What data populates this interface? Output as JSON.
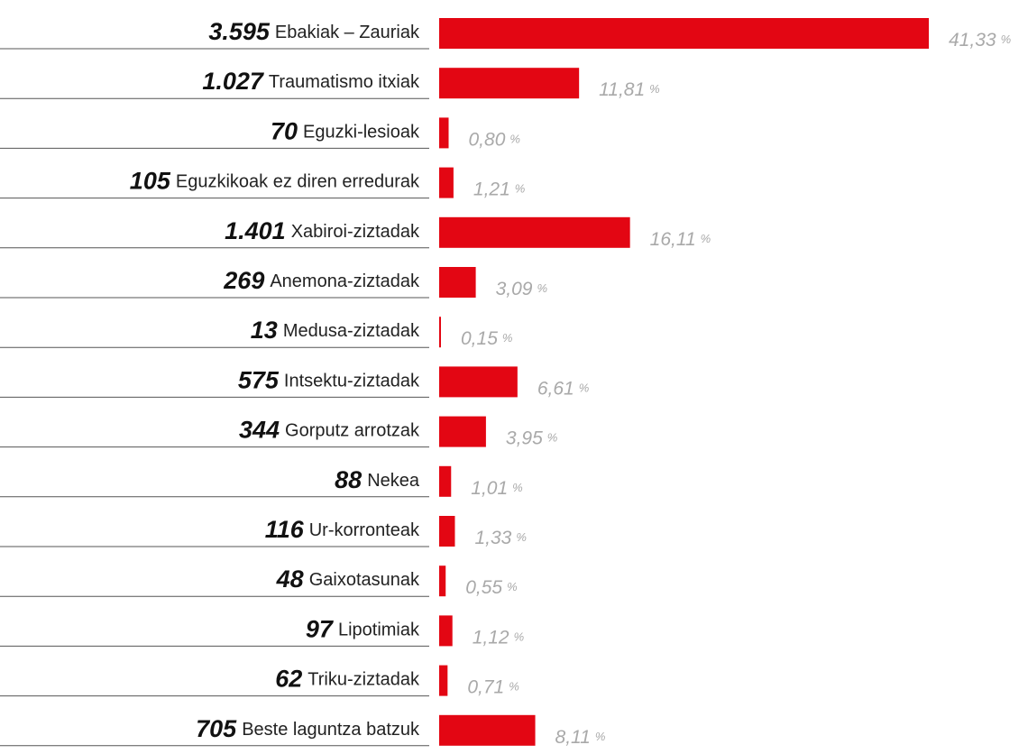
{
  "chart_data": {
    "type": "bar",
    "orientation": "horizontal",
    "color": "#e30613",
    "categories": [
      "Ebakiak – Zauriak",
      "Traumatismo itxiak",
      "Eguzki-lesioak",
      "Eguzkikoak ez diren erredurak",
      "Xabiroi-ziztadak",
      "Anemona-ziztadak",
      "Medusa-ziztadak",
      "Intsektu-ziztadak",
      "Gorputz arrotzak",
      "Nekea",
      "Ur-korronteak",
      "Gaixotasunak",
      "Lipotimiak",
      "Triku-ziztadak",
      "Beste laguntza batzuk"
    ],
    "counts": [
      3595,
      1027,
      70,
      105,
      1401,
      269,
      13,
      575,
      344,
      88,
      116,
      48,
      97,
      62,
      705
    ],
    "count_labels": [
      "3.595",
      "1.027",
      "70",
      "105",
      "1.401",
      "269",
      "13",
      "575",
      "344",
      "88",
      "116",
      "48",
      "97",
      "62",
      "705"
    ],
    "values": [
      41.33,
      11.81,
      0.8,
      1.21,
      16.11,
      3.09,
      0.15,
      6.61,
      3.95,
      1.01,
      1.33,
      0.55,
      1.12,
      0.71,
      8.11
    ],
    "value_labels": [
      "41,33",
      "11,81",
      "0,80",
      "1,21",
      "16,11",
      "3,09",
      "0,15",
      "6,61",
      "3,95",
      "1,01",
      "1,33",
      "0,55",
      "1,12",
      "0,71",
      "8,11"
    ],
    "unit": "%"
  }
}
